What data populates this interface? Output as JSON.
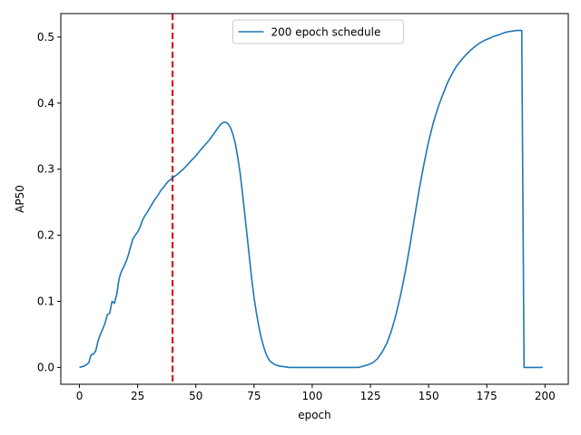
{
  "chart_data": {
    "type": "line",
    "title": "",
    "xlabel": "epoch",
    "ylabel": "AP50",
    "xlim": [
      -8,
      210
    ],
    "ylim": [
      -0.0255,
      0.5355
    ],
    "x_ticks": [
      0,
      25,
      50,
      75,
      100,
      125,
      150,
      175,
      200
    ],
    "y_ticks": [
      0.0,
      0.1,
      0.2,
      0.3,
      0.4,
      0.5
    ],
    "x_tick_labels": [
      "0",
      "25",
      "50",
      "75",
      "100",
      "125",
      "150",
      "175",
      "200"
    ],
    "y_tick_labels": [
      "0.0",
      "0.1",
      "0.2",
      "0.3",
      "0.4",
      "0.5"
    ],
    "grid": false,
    "legend_position": "upper center",
    "reference_lines": [
      {
        "type": "vertical",
        "x": 40,
        "style": "dashed",
        "color": "#dd1111"
      }
    ],
    "series": [
      {
        "name": "200 epoch schedule",
        "color": "#1f77b4",
        "points": [
          [
            0,
            0.0
          ],
          [
            1,
            0.001
          ],
          [
            2,
            0.002
          ],
          [
            3,
            0.004
          ],
          [
            4,
            0.007
          ],
          [
            5,
            0.019
          ],
          [
            6,
            0.02
          ],
          [
            7,
            0.025
          ],
          [
            8,
            0.04
          ],
          [
            9,
            0.05
          ],
          [
            10,
            0.058
          ],
          [
            11,
            0.067
          ],
          [
            12,
            0.08
          ],
          [
            13,
            0.082
          ],
          [
            14,
            0.1
          ],
          [
            15,
            0.097
          ],
          [
            16,
            0.11
          ],
          [
            17,
            0.134
          ],
          [
            18,
            0.145
          ],
          [
            19,
            0.152
          ],
          [
            20,
            0.16
          ],
          [
            21,
            0.17
          ],
          [
            22,
            0.183
          ],
          [
            23,
            0.195
          ],
          [
            24,
            0.2
          ],
          [
            25,
            0.205
          ],
          [
            26,
            0.212
          ],
          [
            27,
            0.222
          ],
          [
            28,
            0.229
          ],
          [
            29,
            0.234
          ],
          [
            30,
            0.24
          ],
          [
            31,
            0.246
          ],
          [
            32,
            0.252
          ],
          [
            33,
            0.257
          ],
          [
            34,
            0.262
          ],
          [
            35,
            0.268
          ],
          [
            36,
            0.272
          ],
          [
            37,
            0.277
          ],
          [
            38,
            0.281
          ],
          [
            39,
            0.284
          ],
          [
            40,
            0.287
          ],
          [
            42,
            0.292
          ],
          [
            44,
            0.298
          ],
          [
            46,
            0.305
          ],
          [
            48,
            0.313
          ],
          [
            50,
            0.32
          ],
          [
            52,
            0.329
          ],
          [
            54,
            0.337
          ],
          [
            56,
            0.345
          ],
          [
            58,
            0.355
          ],
          [
            60,
            0.365
          ],
          [
            61,
            0.369
          ],
          [
            62,
            0.371
          ],
          [
            63,
            0.371
          ],
          [
            64,
            0.368
          ],
          [
            65,
            0.362
          ],
          [
            66,
            0.352
          ],
          [
            67,
            0.338
          ],
          [
            68,
            0.318
          ],
          [
            69,
            0.295
          ],
          [
            70,
            0.265
          ],
          [
            71,
            0.233
          ],
          [
            72,
            0.2
          ],
          [
            73,
            0.167
          ],
          [
            74,
            0.134
          ],
          [
            75,
            0.106
          ],
          [
            76,
            0.083
          ],
          [
            77,
            0.063
          ],
          [
            78,
            0.046
          ],
          [
            79,
            0.033
          ],
          [
            80,
            0.022
          ],
          [
            81,
            0.014
          ],
          [
            82,
            0.009
          ],
          [
            84,
            0.004
          ],
          [
            86,
            0.002
          ],
          [
            88,
            0.001
          ],
          [
            90,
            0.0
          ],
          [
            95,
            0.0
          ],
          [
            100,
            0.0
          ],
          [
            105,
            0.0
          ],
          [
            110,
            0.0
          ],
          [
            115,
            0.0
          ],
          [
            118,
            0.0
          ],
          [
            120,
            0.0
          ],
          [
            122,
            0.002
          ],
          [
            124,
            0.004
          ],
          [
            126,
            0.007
          ],
          [
            128,
            0.013
          ],
          [
            130,
            0.023
          ],
          [
            132,
            0.036
          ],
          [
            134,
            0.055
          ],
          [
            136,
            0.08
          ],
          [
            138,
            0.11
          ],
          [
            140,
            0.145
          ],
          [
            142,
            0.185
          ],
          [
            144,
            0.228
          ],
          [
            146,
            0.27
          ],
          [
            148,
            0.308
          ],
          [
            150,
            0.342
          ],
          [
            152,
            0.37
          ],
          [
            154,
            0.393
          ],
          [
            156,
            0.412
          ],
          [
            158,
            0.43
          ],
          [
            160,
            0.444
          ],
          [
            162,
            0.456
          ],
          [
            164,
            0.465
          ],
          [
            166,
            0.473
          ],
          [
            168,
            0.48
          ],
          [
            170,
            0.486
          ],
          [
            172,
            0.491
          ],
          [
            174,
            0.495
          ],
          [
            176,
            0.498
          ],
          [
            178,
            0.501
          ],
          [
            180,
            0.503
          ],
          [
            182,
            0.506
          ],
          [
            184,
            0.508
          ],
          [
            186,
            0.509
          ],
          [
            188,
            0.51
          ],
          [
            189,
            0.51
          ],
          [
            190,
            0.51
          ],
          [
            191,
            0.0
          ],
          [
            193,
            0.0
          ],
          [
            195,
            0.0
          ],
          [
            197,
            0.0
          ],
          [
            199,
            0.0
          ]
        ]
      }
    ]
  }
}
